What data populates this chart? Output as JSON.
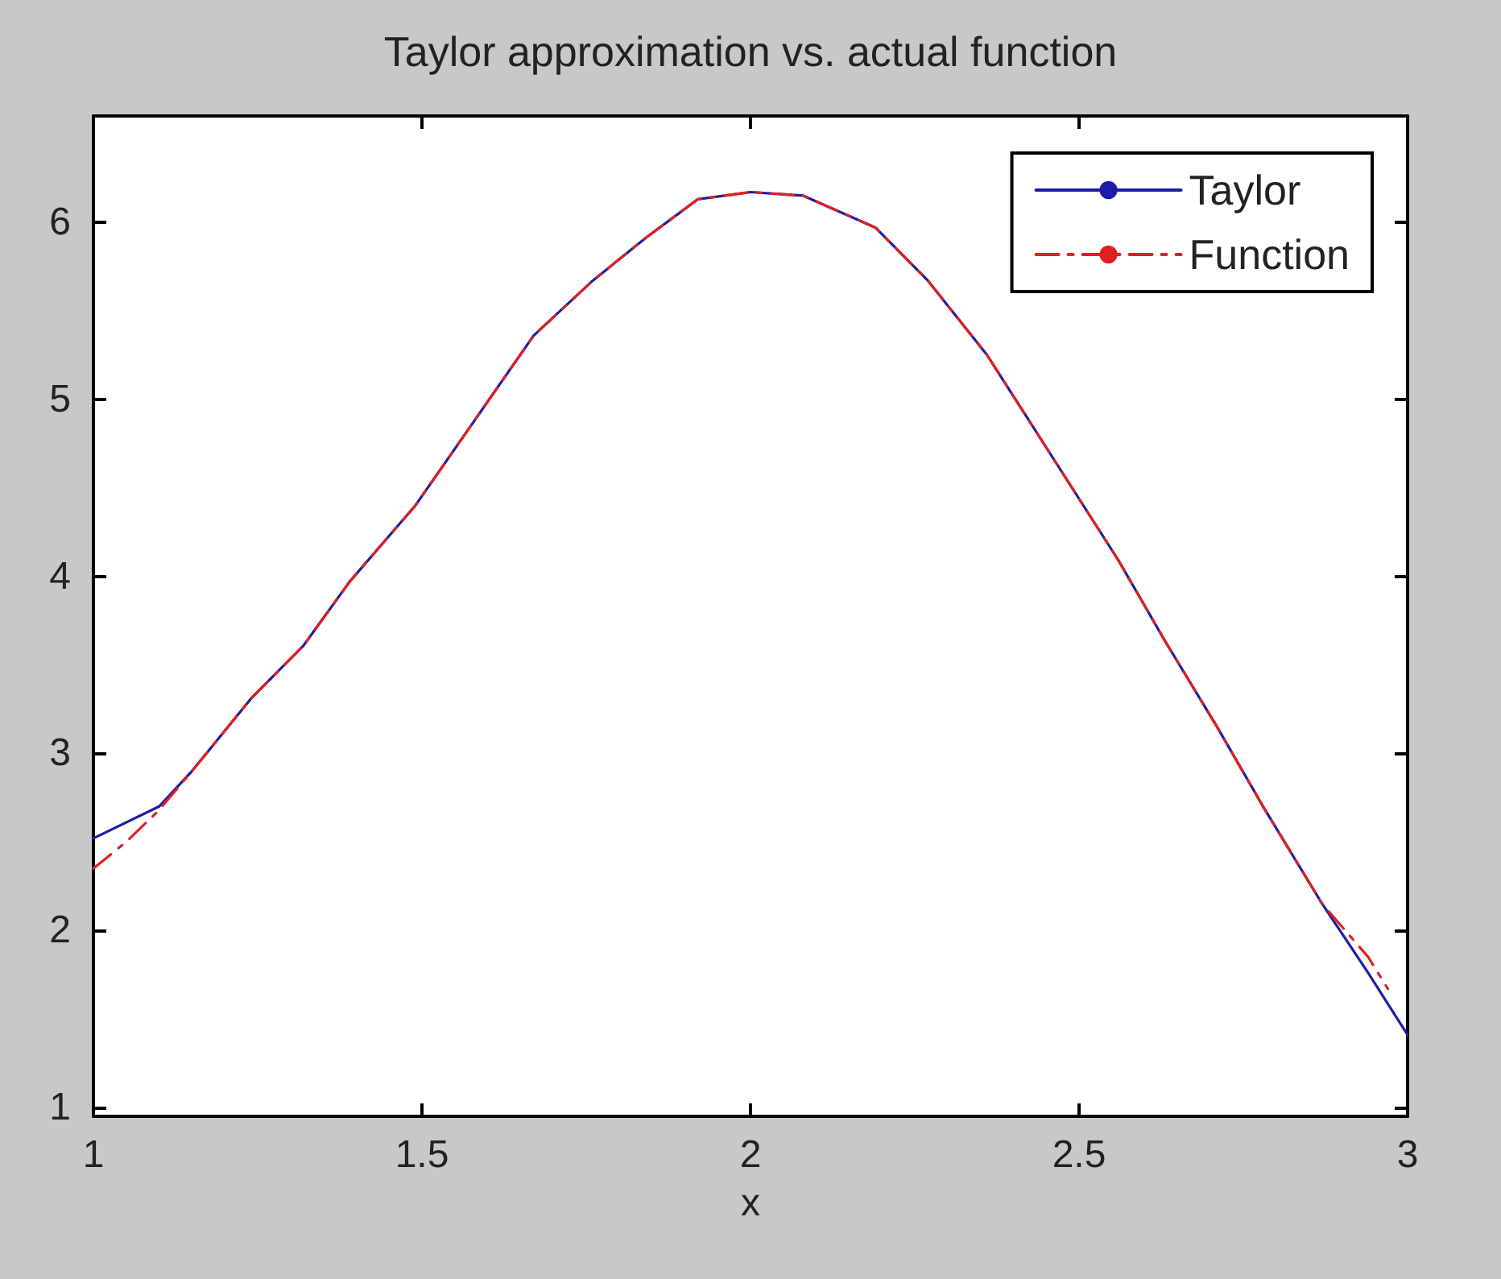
{
  "chart_data": {
    "type": "line",
    "title": "Taylor approximation vs. actual function",
    "xlabel": "x",
    "xlim": [
      1,
      3
    ],
    "xticks": [
      1,
      1.5,
      2,
      2.5,
      3
    ],
    "ylim": [
      0.95,
      6.6
    ],
    "yticks": [
      1,
      2,
      3,
      4,
      5,
      6
    ],
    "grid": false,
    "legend": "top right",
    "marker": "none",
    "series": [
      {
        "name": "Taylor",
        "color": "#1c1ca8",
        "line_style": "solid",
        "x": [
          1,
          1.1,
          1.15,
          1.24,
          1.32,
          1.39,
          1.49,
          1.58,
          1.67,
          1.76,
          1.84,
          1.92,
          2,
          2.08,
          2.19,
          2.27,
          2.36,
          2.46,
          2.56,
          2.63,
          2.71,
          2.78,
          2.87,
          2.94,
          3
        ],
        "values": [
          2.52,
          2.7,
          2.9,
          3.31,
          3.61,
          3.97,
          4.4,
          4.88,
          5.36,
          5.67,
          5.91,
          6.13,
          6.17,
          6.15,
          5.97,
          5.67,
          5.25,
          4.67,
          4.09,
          3.64,
          3.15,
          2.7,
          2.15,
          1.76,
          1.41
        ]
      },
      {
        "name": "Function",
        "color": "#e02020",
        "line_style": "dashed",
        "x": [
          1,
          1.05,
          1.1,
          1.15,
          1.24,
          1.32,
          1.39,
          1.49,
          1.58,
          1.67,
          1.76,
          1.84,
          1.92,
          2,
          2.08,
          2.19,
          2.27,
          2.36,
          2.46,
          2.56,
          2.63,
          2.71,
          2.78,
          2.87,
          2.94,
          2.97
        ],
        "values": [
          2.35,
          2.5,
          2.68,
          2.9,
          3.31,
          3.61,
          3.97,
          4.4,
          4.88,
          5.36,
          5.67,
          5.91,
          6.13,
          6.17,
          6.15,
          5.97,
          5.67,
          5.25,
          4.67,
          4.09,
          3.64,
          3.15,
          2.7,
          2.15,
          1.85,
          1.67
        ]
      }
    ]
  }
}
